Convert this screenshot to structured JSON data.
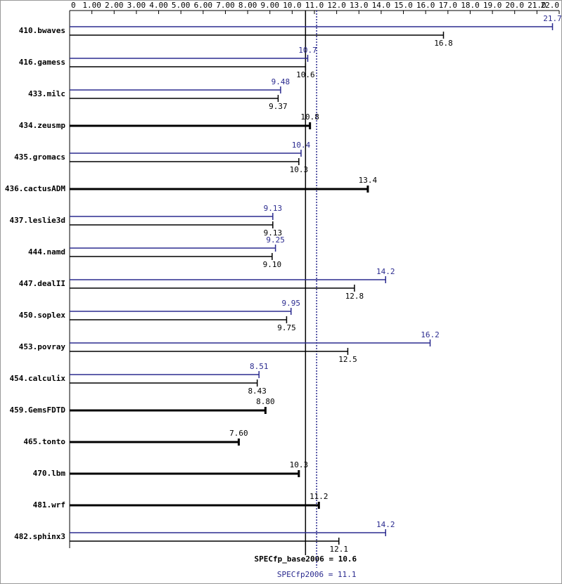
{
  "chart_data": {
    "type": "bar",
    "orientation": "horizontal",
    "categories": [
      "410.bwaves",
      "416.gamess",
      "433.milc",
      "434.zeusmp",
      "435.gromacs",
      "436.cactusADM",
      "437.leslie3d",
      "444.namd",
      "447.dealII",
      "450.soplex",
      "453.povray",
      "454.calculix",
      "459.GemsFDTD",
      "465.tonto",
      "470.lbm",
      "481.wrf",
      "482.sphinx3"
    ],
    "series": [
      {
        "color": "#2b2b8f",
        "values": [
          21.7,
          10.7,
          9.48,
          null,
          10.4,
          null,
          9.13,
          9.25,
          14.2,
          9.95,
          16.2,
          8.51,
          null,
          null,
          null,
          null,
          14.2
        ],
        "value_labels": [
          "21.7",
          "10.7",
          "9.48",
          null,
          "10.4",
          null,
          "9.13",
          "9.25",
          "14.2",
          "9.95",
          "16.2",
          "8.51",
          null,
          null,
          null,
          null,
          "14.2"
        ]
      },
      {
        "color": "#000000",
        "values": [
          16.8,
          10.6,
          9.37,
          10.8,
          10.3,
          13.4,
          9.13,
          9.1,
          12.8,
          9.75,
          12.5,
          8.43,
          8.8,
          7.6,
          10.3,
          11.2,
          12.1
        ],
        "value_labels": [
          "16.8",
          "10.6",
          "9.37",
          "10.8",
          "10.3",
          "13.4",
          "9.13",
          "9.10",
          "12.8",
          "9.75",
          "12.5",
          "8.43",
          "8.80",
          "7.60",
          "10.3",
          "11.2",
          "12.1"
        ]
      }
    ],
    "xlim": [
      0,
      22
    ],
    "xticks": [
      0,
      {
        "value": 1,
        "label": "1.00"
      },
      {
        "value": 2,
        "label": "2.00"
      },
      {
        "value": 3,
        "label": "3.00"
      },
      {
        "value": 4,
        "label": "4.00"
      },
      {
        "value": 5,
        "label": "5.00"
      },
      {
        "value": 6,
        "label": "6.00"
      },
      {
        "value": 7,
        "label": "7.00"
      },
      {
        "value": 8,
        "label": "8.00"
      },
      {
        "value": 9,
        "label": "9.00"
      },
      {
        "value": 10,
        "label": "10.0"
      },
      {
        "value": 11,
        "label": "11.0"
      },
      {
        "value": 12,
        "label": "12.0"
      },
      {
        "value": 13,
        "label": "13.0"
      },
      {
        "value": 14,
        "label": "14.0"
      },
      {
        "value": 15,
        "label": "15.0"
      },
      {
        "value": 16,
        "label": "16.0"
      },
      {
        "value": 17,
        "label": "17.0"
      },
      {
        "value": 18,
        "label": "18.0"
      },
      {
        "value": 19,
        "label": "19.0"
      },
      {
        "value": 20,
        "label": "20.0"
      },
      {
        "value": 21,
        "label": "21.0"
      },
      {
        "value": 22,
        "label": "22.0"
      }
    ],
    "reference_lines": [
      {
        "value": 10.6,
        "label": "SPECfp_base2006 = 10.6",
        "color": "#000000",
        "style": "solid"
      },
      {
        "value": 11.1,
        "label": "SPECfp2006 = 11.1",
        "color": "#2b2b8f",
        "style": "dotted"
      }
    ]
  }
}
